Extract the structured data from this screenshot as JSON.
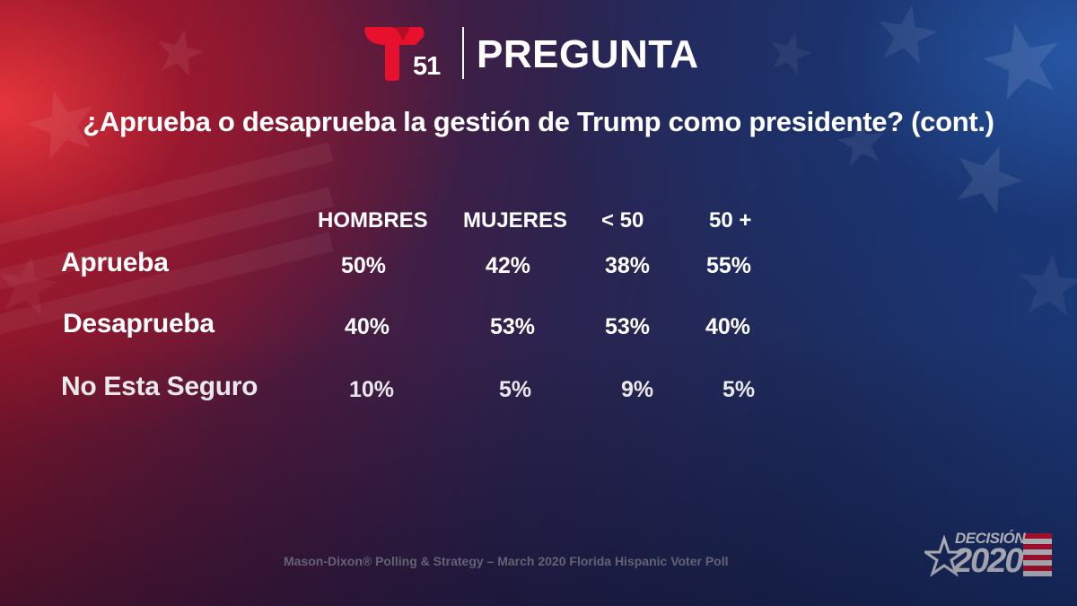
{
  "header": {
    "logo_number": "51",
    "title": "PREGUNTA"
  },
  "question": "¿Aprueba o desaprueba la gestión de Trump como presidente? (cont.)",
  "table": {
    "columns": [
      "HOMBRES",
      "MUJERES",
      "< 50",
      "50 +"
    ],
    "rows": [
      {
        "label": "Aprueba",
        "values": [
          "50%",
          "42%",
          "38%",
          "55%"
        ]
      },
      {
        "label": "Desaprueba",
        "values": [
          "40%",
          "53%",
          "53%",
          "40%"
        ]
      },
      {
        "label": "No Esta Seguro",
        "values": [
          "10%",
          "5%",
          "9%",
          "5%"
        ]
      }
    ]
  },
  "source": "Mason-Dixon® Polling & Strategy – March 2020 Florida Hispanic Voter Poll",
  "badge": {
    "top": "DECISIÓN",
    "year": "2020"
  },
  "colors": {
    "brand_red": "#e8112d",
    "text": "#ffffff",
    "source_text": "#9a98a8"
  }
}
